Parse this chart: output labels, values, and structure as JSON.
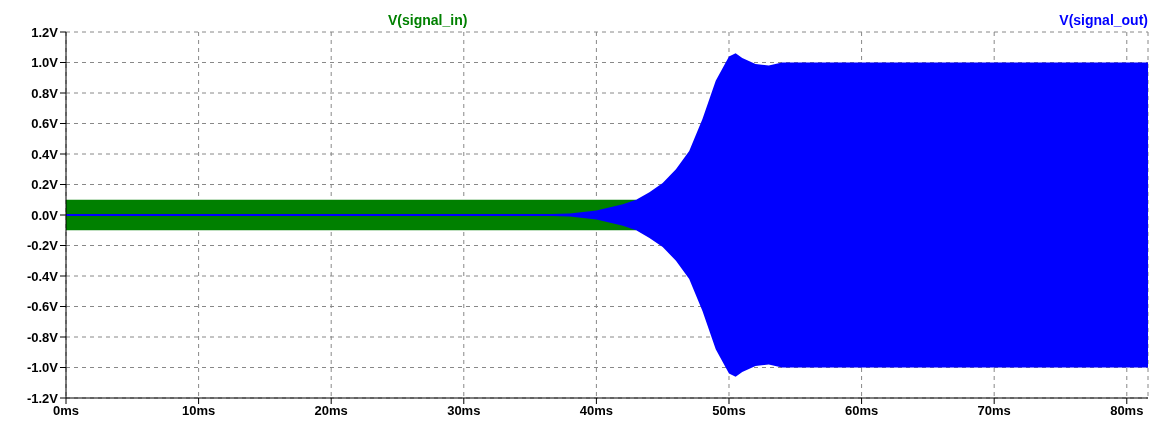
{
  "chart_data": {
    "type": "line",
    "x": [
      0,
      5,
      10,
      15,
      20,
      25,
      30,
      35,
      36,
      38,
      40,
      42,
      43,
      44,
      45,
      46,
      47,
      48,
      49,
      50,
      50.5,
      51,
      52,
      53,
      54,
      56,
      60,
      70,
      81.6
    ],
    "series": [
      {
        "name": "V(signal_in)",
        "color": "#008000",
        "values": [
          null,
          null,
          null,
          null,
          null,
          null,
          null,
          null,
          null,
          null,
          null,
          null,
          null,
          null,
          null,
          null,
          null,
          null,
          null,
          null,
          null,
          null,
          null,
          null,
          null,
          null,
          null,
          null,
          null
        ],
        "upper": [
          0.1,
          0.1,
          0.1,
          0.1,
          0.1,
          0.1,
          0.1,
          0.1,
          0.1,
          0.1,
          0.1,
          0.1,
          0.1,
          null,
          null,
          null,
          null,
          null,
          null,
          null,
          null,
          null,
          null,
          null,
          null,
          null,
          null,
          null,
          null
        ],
        "lower": [
          -0.1,
          -0.1,
          -0.1,
          -0.1,
          -0.1,
          -0.1,
          -0.1,
          -0.1,
          -0.1,
          -0.1,
          -0.1,
          -0.1,
          -0.1,
          null,
          null,
          null,
          null,
          null,
          null,
          null,
          null,
          null,
          null,
          null,
          null,
          null,
          null,
          null,
          null
        ]
      },
      {
        "name": "V(signal_out)",
        "color": "#0000ff",
        "values": [
          0,
          0,
          0,
          0,
          0,
          0,
          0,
          0,
          0,
          0,
          0,
          0,
          0,
          0,
          0,
          0,
          0,
          0,
          0,
          0,
          0,
          0,
          0,
          0,
          0,
          0,
          0,
          0,
          0
        ],
        "upper": [
          0,
          0,
          0,
          0,
          0,
          0,
          0,
          0,
          0.005,
          0.01,
          0.03,
          0.07,
          0.1,
          0.15,
          0.21,
          0.3,
          0.42,
          0.63,
          0.88,
          1.04,
          1.06,
          1.03,
          0.99,
          0.98,
          1.0,
          1.0,
          1.0,
          1.0,
          1.0
        ],
        "lower": [
          0,
          0,
          0,
          0,
          0,
          0,
          0,
          0,
          -0.005,
          -0.01,
          -0.03,
          -0.07,
          -0.1,
          -0.15,
          -0.21,
          -0.3,
          -0.42,
          -0.63,
          -0.88,
          -1.04,
          -1.06,
          -1.03,
          -0.99,
          -0.98,
          -1.0,
          -1.0,
          -1.0,
          -1.0,
          -1.0
        ]
      }
    ],
    "xlim": [
      0,
      81.6
    ],
    "xticks": [
      {
        "value": 0,
        "label": "0ms"
      },
      {
        "value": 10,
        "label": "10ms"
      },
      {
        "value": 20,
        "label": "20ms"
      },
      {
        "value": 30,
        "label": "30ms"
      },
      {
        "value": 40,
        "label": "40ms"
      },
      {
        "value": 50,
        "label": "50ms"
      },
      {
        "value": 60,
        "label": "60ms"
      },
      {
        "value": 70,
        "label": "70ms"
      },
      {
        "value": 80,
        "label": "80ms"
      }
    ],
    "ylim": [
      -1.2,
      1.2
    ],
    "yticks": [
      {
        "value": -1.2,
        "label": "-1.2V"
      },
      {
        "value": -1.0,
        "label": "-1.0V"
      },
      {
        "value": -0.8,
        "label": "-0.8V"
      },
      {
        "value": -0.6,
        "label": "-0.6V"
      },
      {
        "value": -0.4,
        "label": "-0.4V"
      },
      {
        "value": -0.2,
        "label": "-0.2V"
      },
      {
        "value": 0,
        "label": "0.0V"
      },
      {
        "value": 0.2,
        "label": "0.2V"
      },
      {
        "value": 0.4,
        "label": "0.4V"
      },
      {
        "value": 0.6,
        "label": "0.6V"
      },
      {
        "value": 0.8,
        "label": "0.8V"
      },
      {
        "value": 1.0,
        "label": "1.0V"
      },
      {
        "value": 1.2,
        "label": "1.2V"
      }
    ],
    "grid": true,
    "legend": "top",
    "marker": "none"
  }
}
